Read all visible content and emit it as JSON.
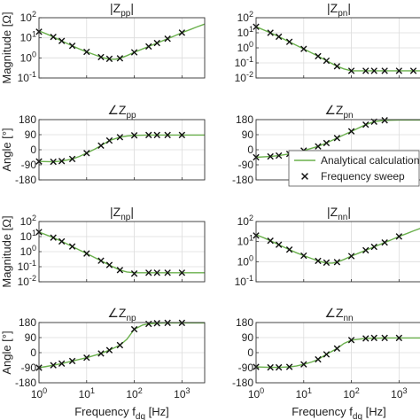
{
  "colors": {
    "analytical": "#6ab04c",
    "sweep": "#111111",
    "grid": "#dcdcdc",
    "axis": "#333333"
  },
  "figure": {
    "xlabel": "Frequency f_dq [Hz]",
    "ylabel_magnitude": "Magnitude [Ω]",
    "ylabel_angle": "Angle [°]"
  },
  "legend": {
    "placement": "right, between rows 2 and 3",
    "analytical_label": "Analytical calculation",
    "sweep_label": "Frequency sweep"
  },
  "chart_data": [
    {
      "id": "Zpp_mag",
      "type": "line",
      "title": "|Z_pp|",
      "ylabel": "Magnitude [Ω]",
      "xlabel": "",
      "xscale": "log",
      "yscale": "log",
      "xlim": [
        1,
        3000
      ],
      "ylim": [
        0.1,
        100
      ],
      "xticks": [
        1,
        10,
        100,
        1000
      ],
      "xticklabels": [
        "10^0",
        "10^1",
        "10^2",
        "10^3"
      ],
      "show_xticklabels": false,
      "yticks": [
        0.1,
        1,
        10,
        100
      ],
      "yticklabels": [
        "10^-1",
        "10^0",
        "10^1",
        "10^2"
      ],
      "series": [
        {
          "name": "Analytical calculation",
          "style": "line",
          "x": [
            1,
            1.5,
            2,
            3,
            5,
            7,
            10,
            15,
            20,
            30,
            40,
            50,
            70,
            100,
            150,
            200,
            300,
            500,
            700,
            1000,
            1500,
            2000,
            3000
          ],
          "y": [
            22,
            15,
            11,
            7,
            4,
            2.8,
            2.0,
            1.4,
            1.1,
            0.85,
            0.85,
            0.95,
            1.3,
            1.9,
            2.8,
            3.7,
            5.5,
            9,
            12.5,
            18,
            26,
            34,
            48
          ]
        },
        {
          "name": "Frequency sweep",
          "style": "marker",
          "x": [
            1,
            2,
            3,
            5,
            10,
            20,
            30,
            50,
            100,
            200,
            300,
            500,
            1000
          ],
          "y": [
            20,
            11,
            7,
            4,
            2.0,
            1.1,
            0.9,
            0.95,
            1.9,
            3.7,
            5.5,
            9,
            18
          ]
        }
      ]
    },
    {
      "id": "Zpn_mag",
      "type": "line",
      "title": "|Z_pn|",
      "ylabel": "",
      "xlabel": "",
      "xscale": "log",
      "yscale": "log",
      "xlim": [
        1,
        3000
      ],
      "ylim": [
        0.01,
        100
      ],
      "xticks": [
        1,
        10,
        100,
        1000
      ],
      "xticklabels": [
        "10^0",
        "10^1",
        "10^2",
        "10^3"
      ],
      "show_xticklabels": false,
      "yticks": [
        0.01,
        0.1,
        1,
        10,
        100
      ],
      "yticklabels": [
        "10^-2",
        "10^-1",
        "10^0",
        "10^1",
        "10^2"
      ],
      "series": [
        {
          "name": "Analytical calculation",
          "style": "line",
          "x": [
            1,
            2,
            3,
            5,
            10,
            20,
            30,
            50,
            70,
            100,
            150,
            200,
            300,
            500,
            1000,
            2000,
            3000
          ],
          "y": [
            25,
            10,
            5.5,
            2.5,
            0.85,
            0.28,
            0.14,
            0.06,
            0.04,
            0.03,
            0.03,
            0.03,
            0.03,
            0.03,
            0.03,
            0.03,
            0.03
          ]
        },
        {
          "name": "Frequency sweep",
          "style": "marker",
          "x": [
            1,
            2,
            3,
            5,
            10,
            20,
            30,
            50,
            100,
            200,
            300,
            500,
            1000,
            2000
          ],
          "y": [
            25,
            10,
            5.5,
            2.5,
            0.85,
            0.28,
            0.14,
            0.06,
            0.03,
            0.03,
            0.03,
            0.03,
            0.03,
            0.03
          ]
        }
      ]
    },
    {
      "id": "Zpp_ang",
      "type": "line",
      "title": "∠Z_pp",
      "ylabel": "Angle [°]",
      "xlabel": "",
      "xscale": "log",
      "yscale": "linear",
      "xlim": [
        1,
        3000
      ],
      "ylim": [
        -180,
        180
      ],
      "xticks": [
        1,
        10,
        100,
        1000
      ],
      "xticklabels": [
        "10^0",
        "10^1",
        "10^2",
        "10^3"
      ],
      "show_xticklabels": false,
      "yticks": [
        -180,
        -90,
        0,
        90,
        180
      ],
      "yticklabels": [
        "-180",
        "-90",
        "0",
        "90",
        "180"
      ],
      "series": [
        {
          "name": "Analytical calculation",
          "style": "line",
          "x": [
            1,
            2,
            3,
            5,
            7,
            10,
            15,
            20,
            30,
            50,
            70,
            100,
            200,
            500,
            1000,
            3000
          ],
          "y": [
            -70,
            -72,
            -68,
            -55,
            -40,
            -20,
            5,
            25,
            55,
            75,
            82,
            86,
            88,
            88,
            88,
            88
          ]
        },
        {
          "name": "Frequency sweep",
          "style": "marker",
          "x": [
            1,
            2,
            3,
            5,
            10,
            20,
            30,
            50,
            100,
            200,
            300,
            500,
            1000
          ],
          "y": [
            -70,
            -72,
            -68,
            -55,
            -20,
            25,
            55,
            75,
            86,
            88,
            88,
            88,
            88
          ]
        }
      ]
    },
    {
      "id": "Zpn_ang",
      "type": "line",
      "title": "∠Z_pn",
      "ylabel": "",
      "xlabel": "",
      "xscale": "log",
      "yscale": "linear",
      "xlim": [
        1,
        3000
      ],
      "ylim": [
        -180,
        180
      ],
      "xticks": [
        1,
        10,
        100,
        1000
      ],
      "xticklabels": [
        "10^0",
        "10^1",
        "10^2",
        "10^3"
      ],
      "show_xticklabels": false,
      "yticks": [
        -180,
        -90,
        0,
        90,
        180
      ],
      "yticklabels": [
        "-180",
        "-90",
        "0",
        "90",
        "180"
      ],
      "series": [
        {
          "name": "Analytical calculation",
          "style": "line",
          "x": [
            1,
            2,
            3,
            5,
            10,
            20,
            30,
            50,
            100,
            200,
            300,
            500,
            1000,
            3000
          ],
          "y": [
            -45,
            -40,
            -35,
            -25,
            -5,
            20,
            40,
            70,
            110,
            150,
            168,
            176,
            178,
            178
          ]
        },
        {
          "name": "Frequency sweep",
          "style": "marker",
          "x": [
            1,
            2,
            3,
            5,
            10,
            20,
            30,
            50,
            100,
            200,
            300,
            500
          ],
          "y": [
            -45,
            -40,
            -35,
            -25,
            -5,
            20,
            40,
            70,
            110,
            150,
            168,
            176
          ]
        }
      ]
    },
    {
      "id": "Znp_mag",
      "type": "line",
      "title": "|Z_np|",
      "ylabel": "Magnitude [Ω]",
      "xlabel": "",
      "xscale": "log",
      "yscale": "log",
      "xlim": [
        1,
        3000
      ],
      "ylim": [
        0.01,
        100
      ],
      "xticks": [
        1,
        10,
        100,
        1000
      ],
      "xticklabels": [
        "10^0",
        "10^1",
        "10^2",
        "10^3"
      ],
      "show_xticklabels": false,
      "yticks": [
        0.01,
        0.1,
        1,
        10,
        100
      ],
      "yticklabels": [
        "10^-2",
        "10^-1",
        "10^0",
        "10^1",
        "10^2"
      ],
      "series": [
        {
          "name": "Analytical calculation",
          "style": "line",
          "x": [
            1,
            2,
            3,
            5,
            10,
            20,
            30,
            50,
            70,
            100,
            150,
            200,
            300,
            500,
            1000,
            3000
          ],
          "y": [
            20,
            8.5,
            4.8,
            2.2,
            0.75,
            0.25,
            0.13,
            0.06,
            0.045,
            0.04,
            0.04,
            0.04,
            0.04,
            0.04,
            0.04,
            0.04
          ]
        },
        {
          "name": "Frequency sweep",
          "style": "marker",
          "x": [
            1,
            2,
            3,
            5,
            10,
            20,
            30,
            50,
            100,
            200,
            300,
            500,
            1000
          ],
          "y": [
            20,
            8.5,
            4.8,
            2.2,
            0.75,
            0.25,
            0.13,
            0.06,
            0.035,
            0.04,
            0.04,
            0.04,
            0.04
          ]
        }
      ]
    },
    {
      "id": "Znn_mag",
      "type": "line",
      "title": "|Z_nn|",
      "ylabel": "",
      "xlabel": "",
      "xscale": "log",
      "yscale": "log",
      "xlim": [
        1,
        3000
      ],
      "ylim": [
        0.1,
        100
      ],
      "xticks": [
        1,
        10,
        100,
        1000
      ],
      "xticklabels": [
        "10^0",
        "10^1",
        "10^2",
        "10^3"
      ],
      "show_xticklabels": false,
      "yticks": [
        0.1,
        1,
        10,
        100
      ],
      "yticklabels": [
        "10^-1",
        "10^0",
        "10^1",
        "10^2"
      ],
      "series": [
        {
          "name": "Analytical calculation",
          "style": "line",
          "x": [
            1,
            1.5,
            2,
            3,
            5,
            7,
            10,
            15,
            20,
            30,
            40,
            50,
            70,
            100,
            150,
            200,
            300,
            500,
            700,
            1000,
            1500,
            2000,
            3000
          ],
          "y": [
            22,
            15,
            11,
            7,
            4,
            2.8,
            2.0,
            1.4,
            1.1,
            0.85,
            0.85,
            0.95,
            1.3,
            1.9,
            2.8,
            3.7,
            5.5,
            9,
            12.5,
            18,
            26,
            34,
            48
          ]
        },
        {
          "name": "Frequency sweep",
          "style": "marker",
          "x": [
            1,
            2,
            3,
            5,
            10,
            20,
            30,
            50,
            100,
            200,
            300,
            500,
            1000
          ],
          "y": [
            20,
            11,
            7,
            4,
            2.0,
            1.1,
            0.9,
            0.95,
            1.9,
            3.7,
            5.5,
            9,
            18
          ]
        }
      ]
    },
    {
      "id": "Znp_ang",
      "type": "line",
      "title": "∠Z_np",
      "ylabel": "Angle [°]",
      "xlabel": "Frequency f_dq [Hz]",
      "xscale": "log",
      "yscale": "linear",
      "xlim": [
        1,
        3000
      ],
      "ylim": [
        -180,
        180
      ],
      "xticks": [
        1,
        10,
        100,
        1000
      ],
      "xticklabels": [
        "10^0",
        "10^1",
        "10^2",
        "10^3"
      ],
      "show_xticklabels": true,
      "yticks": [
        -180,
        -90,
        0,
        90,
        180
      ],
      "yticklabels": [
        "-180",
        "-90",
        "0",
        "90",
        "180"
      ],
      "series": [
        {
          "name": "Analytical calculation",
          "style": "line",
          "x": [
            1,
            2,
            3,
            5,
            10,
            20,
            30,
            50,
            70,
            100,
            150,
            200,
            300,
            500,
            1000,
            3000
          ],
          "y": [
            -90,
            -75,
            -65,
            -50,
            -30,
            -5,
            15,
            45,
            80,
            140,
            165,
            172,
            176,
            178,
            178,
            178
          ]
        },
        {
          "name": "Frequency sweep",
          "style": "marker",
          "x": [
            1,
            2,
            3,
            5,
            10,
            20,
            30,
            50,
            100,
            200,
            300,
            500,
            1000
          ],
          "y": [
            -90,
            -75,
            -65,
            -50,
            -30,
            -5,
            15,
            45,
            140,
            172,
            176,
            178,
            178
          ]
        }
      ]
    },
    {
      "id": "Znn_ang",
      "type": "line",
      "title": "∠Z_nn",
      "ylabel": "",
      "xlabel": "Frequency f_dq [Hz]",
      "xscale": "log",
      "yscale": "linear",
      "xlim": [
        1,
        3000
      ],
      "ylim": [
        -180,
        180
      ],
      "xticks": [
        1,
        10,
        100,
        1000
      ],
      "xticklabels": [
        "10^0",
        "10^1",
        "10^2",
        "10^3"
      ],
      "show_xticklabels": true,
      "yticks": [
        -180,
        -90,
        0,
        90,
        180
      ],
      "yticklabels": [
        "-180",
        "-90",
        "0",
        "90",
        "180"
      ],
      "series": [
        {
          "name": "Analytical calculation",
          "style": "line",
          "x": [
            1,
            2,
            3,
            5,
            7,
            10,
            15,
            20,
            30,
            50,
            70,
            100,
            200,
            500,
            1000,
            3000
          ],
          "y": [
            -85,
            -88,
            -88,
            -85,
            -80,
            -70,
            -55,
            -40,
            -10,
            25,
            55,
            75,
            85,
            88,
            88,
            88
          ]
        },
        {
          "name": "Frequency sweep",
          "style": "marker",
          "x": [
            1,
            2,
            3,
            5,
            10,
            20,
            30,
            50,
            100,
            200,
            300,
            500,
            1000
          ],
          "y": [
            -85,
            -88,
            -88,
            -85,
            -70,
            -40,
            -10,
            25,
            75,
            85,
            88,
            88,
            88
          ]
        }
      ]
    }
  ]
}
